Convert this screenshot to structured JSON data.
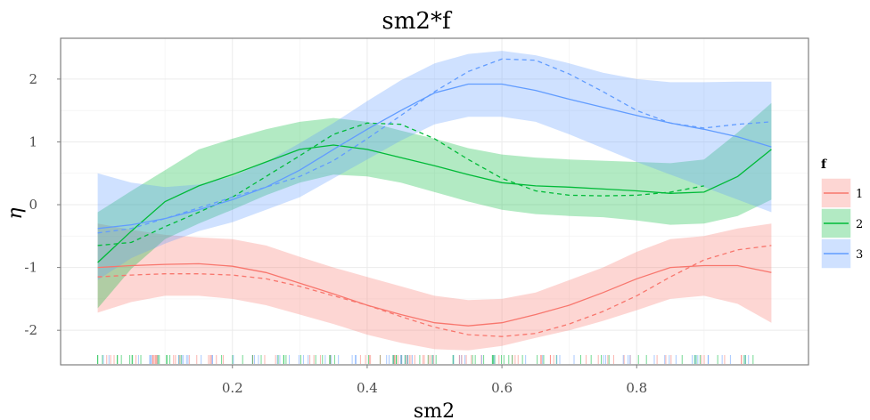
{
  "chart_data": {
    "type": "line",
    "title": "sm2*f",
    "xlabel": "sm2",
    "ylabel": "η",
    "xlim": [
      -0.055,
      1.055
    ],
    "ylim": [
      -2.55,
      2.65
    ],
    "xticks": [
      0.2,
      0.4,
      0.6,
      0.8
    ],
    "xtick_labels": [
      "0.2",
      "0.4",
      "0.6",
      "0.8"
    ],
    "yticks": [
      -2,
      -1,
      0,
      1,
      2
    ],
    "ytick_labels": [
      "-2",
      "-1",
      "0",
      "1",
      "2"
    ],
    "grid": true,
    "legend": {
      "title": "f",
      "position": "right"
    },
    "x": [
      0.0,
      0.05,
      0.1,
      0.15,
      0.2,
      0.25,
      0.3,
      0.35,
      0.4,
      0.45,
      0.5,
      0.55,
      0.6,
      0.65,
      0.7,
      0.75,
      0.8,
      0.85,
      0.9,
      0.95,
      1.0
    ],
    "series": [
      {
        "name": "1",
        "color": "#F8766D",
        "fill": "#F8766D",
        "fit": [
          -1.0,
          -0.97,
          -0.95,
          -0.94,
          -0.98,
          -1.08,
          -1.25,
          -1.42,
          -1.6,
          -1.75,
          -1.88,
          -1.93,
          -1.88,
          -1.75,
          -1.6,
          -1.4,
          -1.18,
          -1.0,
          -0.97,
          -0.97,
          -1.08
        ],
        "lower": [
          -1.72,
          -1.55,
          -1.45,
          -1.45,
          -1.5,
          -1.6,
          -1.75,
          -1.9,
          -2.07,
          -2.2,
          -2.3,
          -2.32,
          -2.25,
          -2.12,
          -2.0,
          -1.85,
          -1.68,
          -1.5,
          -1.45,
          -1.58,
          -1.88
        ],
        "upper": [
          -0.3,
          -0.4,
          -0.48,
          -0.52,
          -0.55,
          -0.65,
          -0.83,
          -1.0,
          -1.15,
          -1.3,
          -1.45,
          -1.52,
          -1.5,
          -1.4,
          -1.2,
          -1.0,
          -0.75,
          -0.55,
          -0.5,
          -0.38,
          -0.3
        ],
        "dashed": [
          -1.15,
          -1.12,
          -1.1,
          -1.1,
          -1.12,
          -1.18,
          -1.3,
          -1.45,
          -1.6,
          -1.78,
          -1.95,
          -2.07,
          -2.1,
          -2.05,
          -1.9,
          -1.7,
          -1.45,
          -1.15,
          -0.88,
          -0.72,
          -0.65
        ]
      },
      {
        "name": "2",
        "color": "#00BA38",
        "fill": "#00BA38",
        "fit": [
          -0.92,
          -0.42,
          0.05,
          0.3,
          0.48,
          0.68,
          0.88,
          0.95,
          0.88,
          0.75,
          0.62,
          0.48,
          0.35,
          0.3,
          0.28,
          0.25,
          0.22,
          0.18,
          0.2,
          0.45,
          0.88
        ],
        "lower": [
          -1.65,
          -1.02,
          -0.55,
          -0.3,
          -0.08,
          0.15,
          0.35,
          0.48,
          0.45,
          0.35,
          0.2,
          0.05,
          -0.08,
          -0.15,
          -0.18,
          -0.2,
          -0.25,
          -0.32,
          -0.3,
          -0.18,
          0.08
        ],
        "upper": [
          -0.12,
          0.22,
          0.55,
          0.88,
          1.05,
          1.2,
          1.32,
          1.38,
          1.32,
          1.18,
          1.05,
          0.9,
          0.8,
          0.75,
          0.72,
          0.7,
          0.68,
          0.66,
          0.72,
          1.15,
          1.62
        ],
        "dashed": [
          -0.65,
          -0.6,
          -0.35,
          -0.12,
          0.12,
          0.45,
          0.78,
          1.12,
          1.3,
          1.28,
          1.05,
          0.72,
          0.42,
          0.22,
          0.15,
          0.14,
          0.15,
          0.2,
          0.3,
          null,
          null
        ]
      },
      {
        "name": "3",
        "color": "#619CFF",
        "fill": "#619CFF",
        "fit": [
          -0.38,
          -0.32,
          -0.22,
          -0.08,
          0.08,
          0.28,
          0.55,
          0.88,
          1.2,
          1.5,
          1.78,
          1.92,
          1.92,
          1.82,
          1.68,
          1.55,
          1.42,
          1.3,
          1.2,
          1.08,
          0.92
        ],
        "lower": [
          -1.2,
          -0.85,
          -0.62,
          -0.42,
          -0.28,
          -0.08,
          0.12,
          0.42,
          0.72,
          1.02,
          1.28,
          1.4,
          1.4,
          1.32,
          1.12,
          0.9,
          0.68,
          0.48,
          0.28,
          0.08,
          -0.12
        ],
        "upper": [
          0.5,
          0.35,
          0.28,
          0.32,
          0.45,
          0.68,
          0.98,
          1.3,
          1.65,
          1.98,
          2.25,
          2.4,
          2.45,
          2.38,
          2.25,
          2.1,
          2.0,
          1.95,
          1.95,
          1.96,
          1.96
        ],
        "dashed": [
          -0.45,
          -0.38,
          -0.22,
          -0.05,
          0.12,
          0.28,
          0.45,
          0.7,
          1.05,
          1.42,
          1.8,
          2.12,
          2.32,
          2.3,
          2.08,
          1.8,
          1.5,
          1.3,
          1.22,
          1.28,
          1.32
        ]
      }
    ],
    "rug_colors": [
      "#F8766D",
      "#00BA38",
      "#619CFF"
    ]
  }
}
